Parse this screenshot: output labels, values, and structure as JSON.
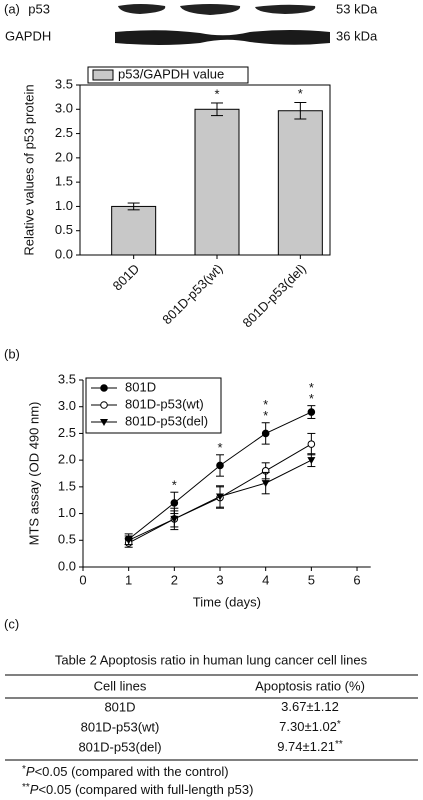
{
  "panels": [
    "(a)",
    "(b)",
    "(c)"
  ],
  "blot": {
    "rows": [
      {
        "name": "p53",
        "size": "53 kDa"
      },
      {
        "name": "GAPDH",
        "size": "36 kDa"
      }
    ]
  },
  "chart_data": [
    {
      "type": "bar",
      "ylabel": "Relative values of p53 protein",
      "categories": [
        "801D",
        "801D-p53(wt)",
        "801D-p53(del)"
      ],
      "series": [
        {
          "name": "p53/GAPDH value",
          "color": "#c8c8c8",
          "values": [
            1.0,
            3.0,
            2.97
          ],
          "errors": [
            0.07,
            0.13,
            0.17
          ]
        }
      ],
      "annotations": [
        {
          "category": 1,
          "text": "*"
        },
        {
          "category": 2,
          "text": "*"
        }
      ],
      "ylim": [
        0,
        3.5
      ],
      "yticks": [
        {
          "value": 0,
          "label": "0.0"
        },
        0.5,
        {
          "value": 1,
          "label": "1.0"
        },
        1.5,
        {
          "value": 2,
          "label": "2.0"
        },
        2.5,
        {
          "value": 3,
          "label": "3.0"
        },
        3.5
      ],
      "legend": "upper-left"
    },
    {
      "type": "line",
      "xlabel": "Time (days)",
      "ylabel": "MTS assay (OD 490 nm)",
      "x": [
        1,
        2,
        3,
        4,
        5
      ],
      "series": [
        {
          "name": "801D",
          "color": "#000000",
          "marker": "filled-circle",
          "values": [
            0.52,
            1.2,
            1.9,
            2.5,
            2.9
          ],
          "errors": [
            0.1,
            0.2,
            0.2,
            0.2,
            0.12
          ]
        },
        {
          "name": "801D-p53(wt)",
          "color": "#000000",
          "marker": "open-circle",
          "values": [
            0.45,
            0.9,
            1.3,
            1.8,
            2.3
          ],
          "errors": [
            0.08,
            0.15,
            0.2,
            0.15,
            0.2
          ]
        },
        {
          "name": "801D-p53(del)",
          "color": "#000000",
          "marker": "triangle-down",
          "values": [
            0.5,
            0.9,
            1.32,
            1.57,
            2.0
          ],
          "errors": [
            0.08,
            0.2,
            0.2,
            0.2,
            0.12
          ]
        }
      ],
      "annotations": [
        {
          "x": 2,
          "text": "*"
        },
        {
          "x": 3,
          "text": "*"
        },
        {
          "x": 4,
          "text": "*"
        },
        {
          "x": 4,
          "text": "*"
        },
        {
          "x": 5,
          "text": "*"
        },
        {
          "x": 5,
          "text": "*"
        }
      ],
      "xlim": [
        0,
        6.3
      ],
      "xticks": [
        0,
        1,
        2,
        3,
        4,
        5,
        6
      ],
      "ylim": [
        0,
        3.5
      ],
      "yticks": [
        {
          "value": 0,
          "label": "0.0"
        },
        0.5,
        {
          "value": 1,
          "label": "1.0"
        },
        1.5,
        {
          "value": 2,
          "label": "2.0"
        },
        2.5,
        {
          "value": 3,
          "label": "3.0"
        },
        3.5
      ],
      "legend": "upper-left"
    }
  ],
  "table": {
    "caption": "Table 2 Apoptosis ratio in human lung cancer cell lines",
    "header": [
      "Cell lines",
      "Apoptosis ratio (%)"
    ],
    "rows": [
      {
        "cell": "801D",
        "ratio": "3.67±1.12"
      },
      {
        "cell": "801D-p53(wt)",
        "ratio": "7.30±1.02",
        "mark": "*"
      },
      {
        "cell": "801D-p53(del)",
        "ratio": "9.74±1.21",
        "mark": "**"
      }
    ],
    "footnotes": [
      {
        "mark": "*",
        "italic": "P",
        "text": "<0.05 (compared with the control)"
      },
      {
        "mark": "**",
        "italic": "P",
        "text": "<0.05 (compared with full-length p53)"
      }
    ]
  }
}
